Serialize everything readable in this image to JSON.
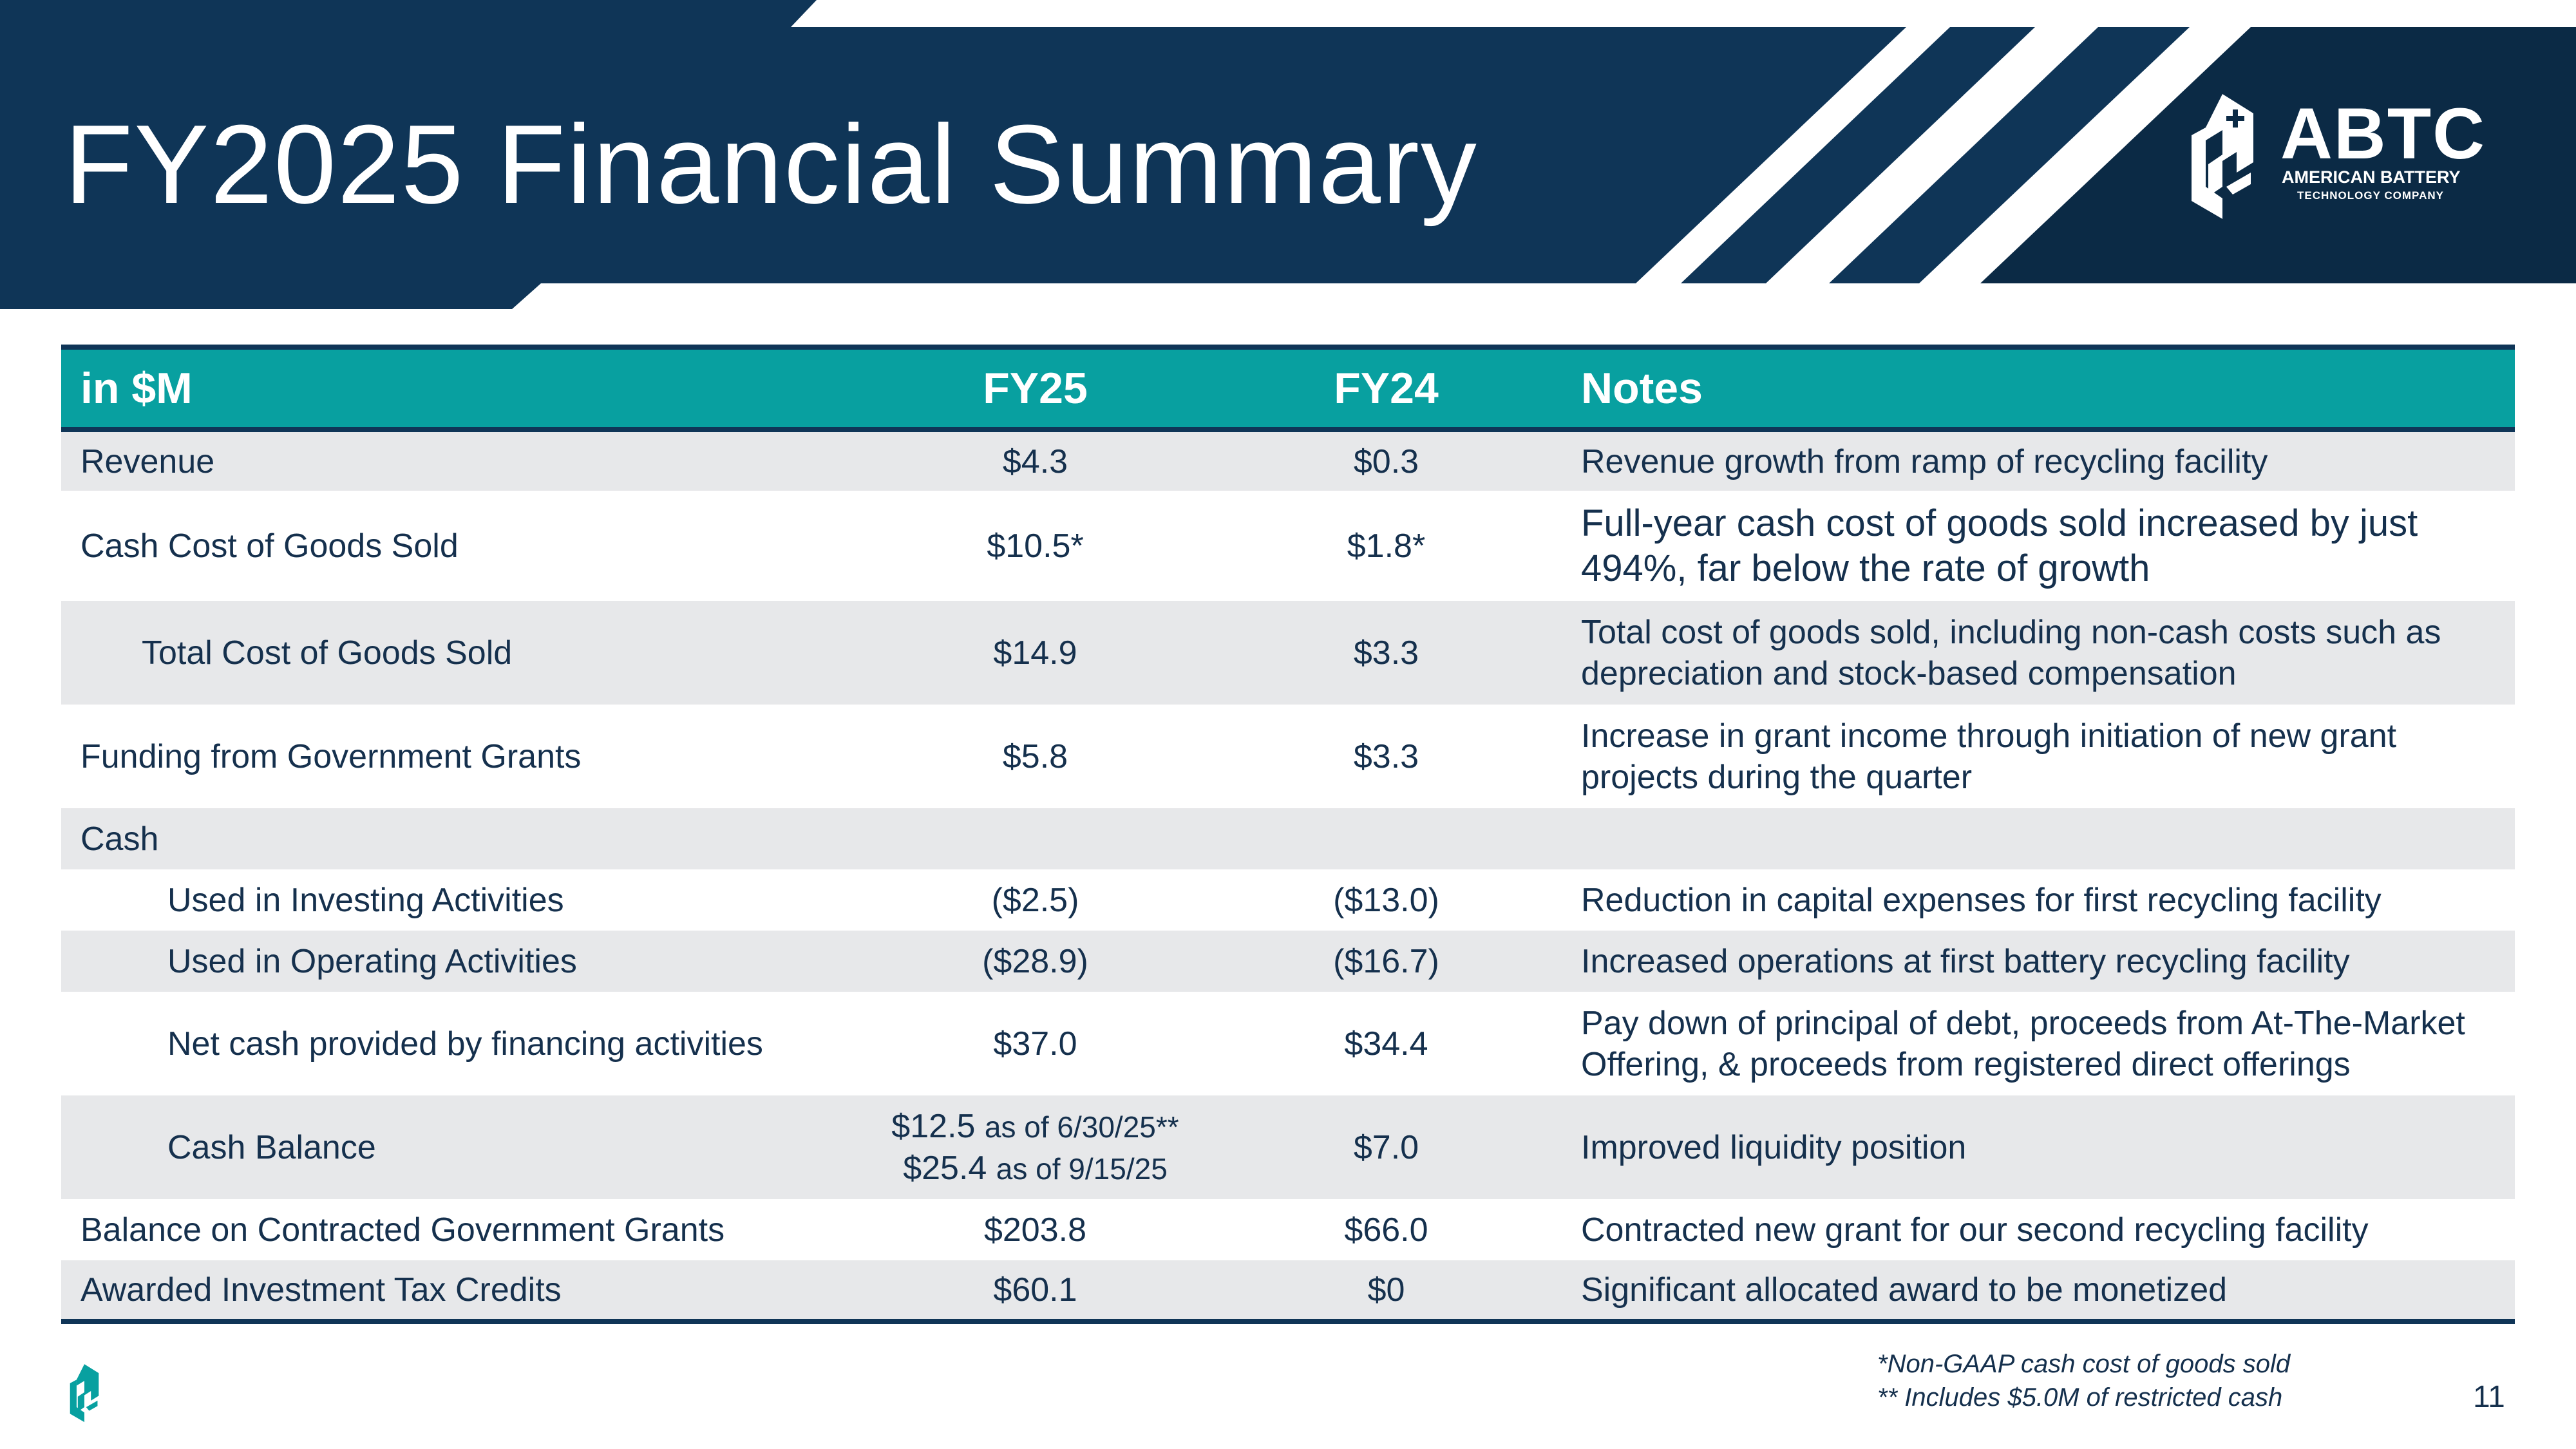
{
  "header": {
    "title": "FY2025 Financial Summary",
    "logo": {
      "abbr": "ABTC",
      "name": "AMERICAN BATTERY",
      "sub": "TECHNOLOGY COMPANY",
      "icon": "abtc-logo-icon"
    }
  },
  "colors": {
    "navy": "#0f3557",
    "navy_dark": "#0b2a45",
    "teal": "#08a0a0",
    "row_shade": "#e7e8ea",
    "text": "#15304d"
  },
  "table": {
    "headers": {
      "label": "in $M",
      "fy25": "FY25",
      "fy24": "FY24",
      "notes": "Notes"
    },
    "rows": [
      {
        "label": "Revenue",
        "fy25": "$4.3",
        "fy24": "$0.3",
        "note": "Revenue growth from ramp of recycling facility"
      },
      {
        "label": "Cash Cost of Goods Sold",
        "fy25": "$10.5*",
        "fy24": "$1.8*",
        "note": "Full-year cash cost of goods sold increased by just 494%, far below the rate of growth"
      },
      {
        "label": "Total Cost of Goods Sold",
        "fy25": "$14.9",
        "fy24": "$3.3",
        "note": "Total cost of goods sold, including non-cash costs such as depreciation and stock-based compensation"
      },
      {
        "label": "Funding from Government Grants",
        "fy25": "$5.8",
        "fy24": "$3.3",
        "note": "Increase in grant income through initiation of new grant projects during the quarter"
      },
      {
        "label": "Cash",
        "fy25": "",
        "fy24": "",
        "note": ""
      },
      {
        "label": "Used in Investing Activities",
        "fy25": "($2.5)",
        "fy24": "($13.0)",
        "note": "Reduction in capital expenses for first recycling facility"
      },
      {
        "label": "Used in Operating Activities",
        "fy25": "($28.9)",
        "fy24": "($16.7)",
        "note": "Increased operations at first battery recycling facility"
      },
      {
        "label": "Net cash provided by financing activities",
        "fy25": "$37.0",
        "fy24": "$34.4",
        "note": "Pay down of principal of debt, proceeds from At-The-Market Offering, & proceeds from registered direct offerings"
      },
      {
        "label": "Cash Balance",
        "fy25_line1_value": "$12.5",
        "fy25_line1_suffix": "as of 6/30/25**",
        "fy25_line2_value": "$25.4",
        "fy25_line2_suffix": "as of 9/15/25",
        "fy24": "$7.0",
        "note": "Improved liquidity position"
      },
      {
        "label": "Balance on Contracted Government Grants",
        "fy25": "$203.8",
        "fy24": "$66.0",
        "note": "Contracted new grant for our second recycling facility"
      },
      {
        "label": "Awarded Investment Tax Credits",
        "fy25": "$60.1",
        "fy24": "$0",
        "note": "Significant allocated award to be monetized"
      }
    ]
  },
  "footer": {
    "footnote1": "*Non-GAAP cash cost of goods sold",
    "footnote2": "** Includes $5.0M of restricted cash",
    "page_number": "11",
    "icon": "abtc-footer-icon"
  }
}
